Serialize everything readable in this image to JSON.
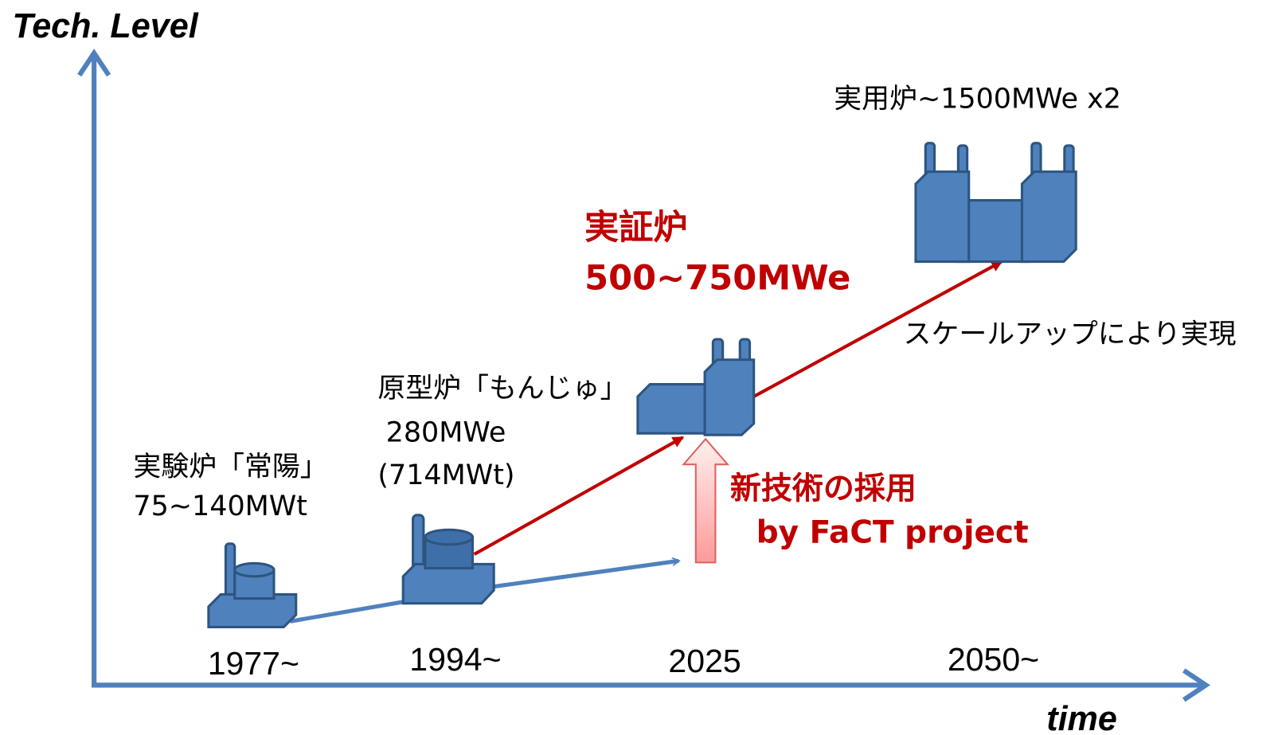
{
  "axes": {
    "y_label": "Tech. Level",
    "x_label": "time"
  },
  "stages": [
    {
      "year": "1977~",
      "label_lines": [
        "実験炉「常陽」",
        "75~140MWt"
      ]
    },
    {
      "year": "1994~",
      "label_lines": [
        "原型炉「もんじゅ」",
        "280MWe",
        "(714MWt)"
      ]
    },
    {
      "year": "2025",
      "label_lines": [
        "実証炉",
        "500~750MWe"
      ]
    },
    {
      "year": "2050~",
      "label_lines": [
        "実用炉~1500MWe x2"
      ]
    }
  ],
  "annotations": {
    "scale_up": "スケールアップにより実現",
    "new_tech": [
      "新技術の採用",
      "by FaCT project"
    ]
  }
}
